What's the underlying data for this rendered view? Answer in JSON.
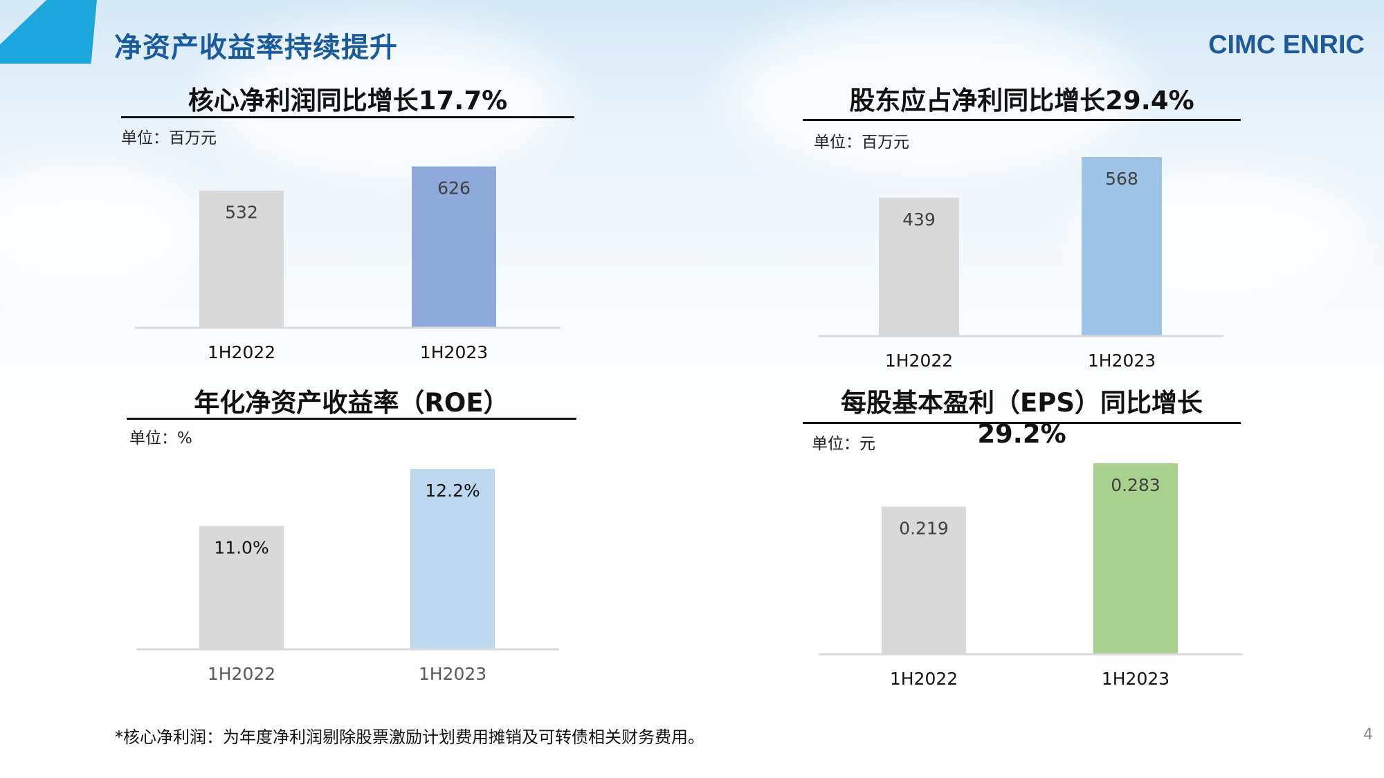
{
  "header": {
    "title": "净资产收益率持续提升",
    "logo_text": "CIMC ENRIC"
  },
  "footer": {
    "note": "*核心净利润：为年度净利润剔除股票激励计划费用摊销及可转债相关财务费用。",
    "page_number": "4"
  },
  "panels": [
    {
      "title": "核心净利润同比增长17.7%",
      "unit": "单位：百万元"
    },
    {
      "title": "股东应占净利同比增长29.4%",
      "unit": "单位：百万元"
    },
    {
      "title": "年化净资产收益率（ROE）",
      "unit": "单位：%"
    },
    {
      "title": "每股基本盈利（EPS）同比增长29.2%",
      "unit": "单位：元"
    }
  ],
  "chart_data": [
    {
      "type": "bar",
      "categories": [
        "1H2022",
        "1H2023"
      ],
      "values": [
        532,
        626
      ],
      "value_labels": [
        "532",
        "626"
      ],
      "colors": [
        "#d9d9d9",
        "#8eaadb"
      ],
      "ylim": [
        0,
        660
      ],
      "label_color": "#404040",
      "tick_color": "#111111"
    },
    {
      "type": "bar",
      "categories": [
        "1H2022",
        "1H2023"
      ],
      "values": [
        439,
        568
      ],
      "value_labels": [
        "439",
        "568"
      ],
      "colors": [
        "#d9d9d9",
        "#9dc3e6"
      ],
      "ylim": [
        0,
        568
      ],
      "label_color": "#404040",
      "tick_color": "#111111"
    },
    {
      "type": "bar",
      "categories": [
        "1H2022",
        "1H2023"
      ],
      "values": [
        11.0,
        12.2
      ],
      "value_labels": [
        "11.0%",
        "12.2%"
      ],
      "colors": [
        "#d9d9d9",
        "#bdd7ee"
      ],
      "ylim": [
        0,
        12.2
      ],
      "ylim_min_visible": 8.4,
      "label_color": "#111111",
      "tick_color": "#595959"
    },
    {
      "type": "bar",
      "categories": [
        "1H2022",
        "1H2023"
      ],
      "values": [
        0.219,
        0.283
      ],
      "value_labels": [
        "0.219",
        "0.283"
      ],
      "colors": [
        "#d9d9d9",
        "#a9d18e"
      ],
      "ylim": [
        0,
        0.283
      ],
      "label_color": "#404040",
      "tick_color": "#111111"
    }
  ]
}
